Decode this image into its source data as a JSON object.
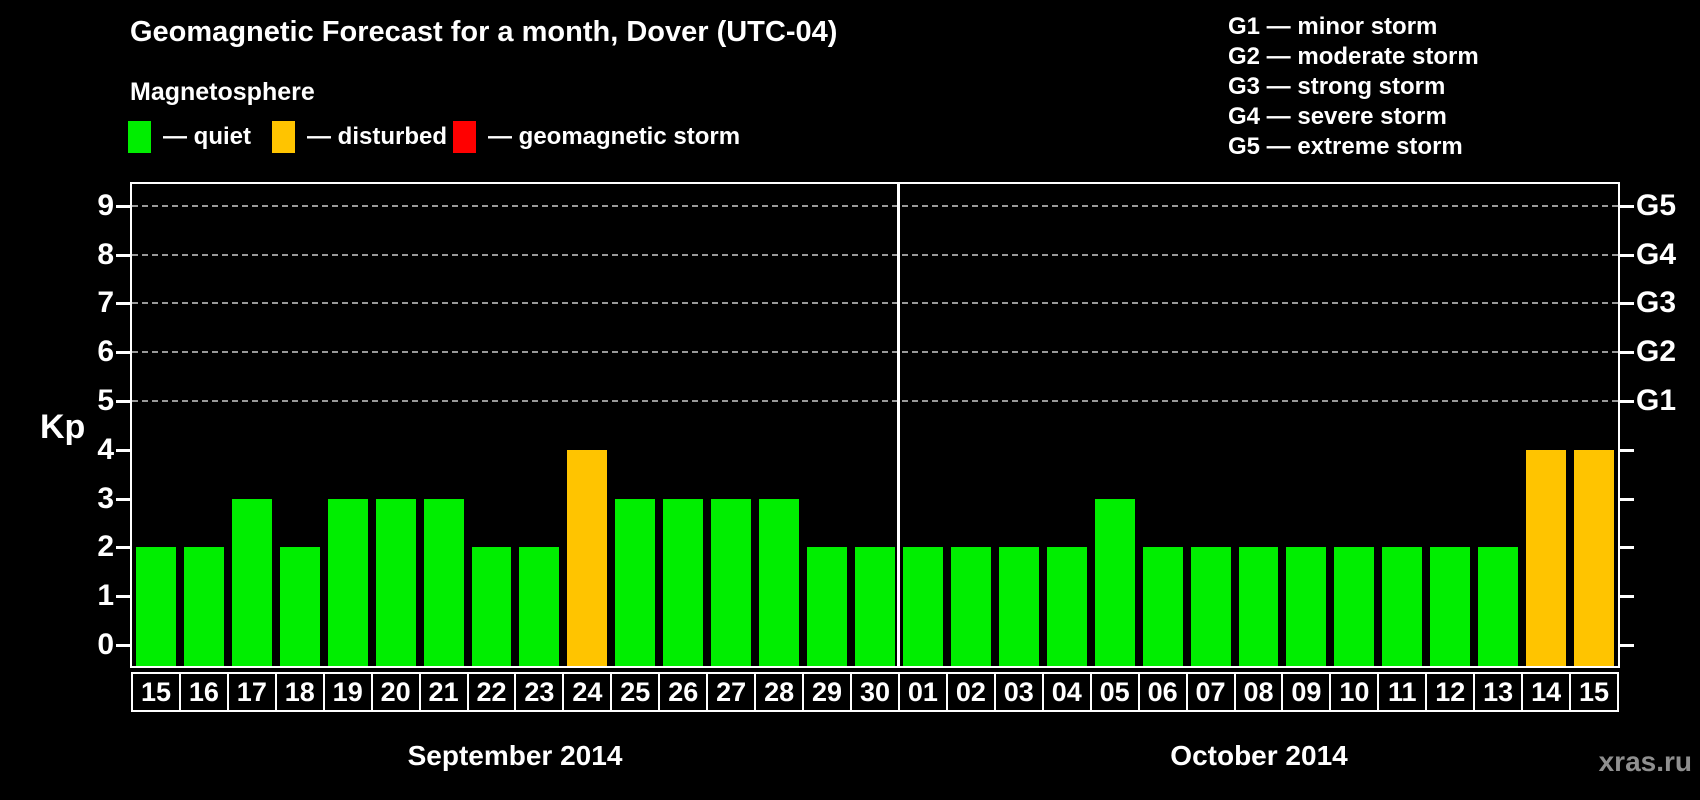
{
  "title": "Geomagnetic Forecast for a month, Dover (UTC-04)",
  "subtitle": "Magnetosphere",
  "condition_legend": [
    {
      "key": "quiet",
      "label": "— quiet",
      "color": "#00ee00"
    },
    {
      "key": "disturbed",
      "label": "— disturbed",
      "color": "#ffc400"
    },
    {
      "key": "storm",
      "label": "— geomagnetic storm",
      "color": "#ff0000"
    }
  ],
  "storm_scale_legend": [
    "G1 — minor storm",
    "G2 — moderate storm",
    "G3 — strong storm",
    "G4 — severe storm",
    "G5 — extreme storm"
  ],
  "watermark": "xras.ru",
  "chart_data": {
    "type": "bar",
    "ylabel": "Kp",
    "ylim": [
      0,
      9
    ],
    "yticks": [
      0,
      1,
      2,
      3,
      4,
      5,
      6,
      7,
      8,
      9
    ],
    "gridlines_at": [
      5,
      6,
      7,
      8,
      9
    ],
    "right_axis_labels": [
      {
        "kp": 5,
        "label": "G1"
      },
      {
        "kp": 6,
        "label": "G2"
      },
      {
        "kp": 7,
        "label": "G3"
      },
      {
        "kp": 8,
        "label": "G4"
      },
      {
        "kp": 9,
        "label": "G5"
      }
    ],
    "colors": {
      "quiet": "#00ee00",
      "disturbed": "#ffc400",
      "storm": "#ff0000"
    },
    "groups": [
      {
        "label": "September 2014",
        "days": [
          {
            "date": "15",
            "kp": 2,
            "status": "quiet"
          },
          {
            "date": "16",
            "kp": 2,
            "status": "quiet"
          },
          {
            "date": "17",
            "kp": 3,
            "status": "quiet"
          },
          {
            "date": "18",
            "kp": 2,
            "status": "quiet"
          },
          {
            "date": "19",
            "kp": 3,
            "status": "quiet"
          },
          {
            "date": "20",
            "kp": 3,
            "status": "quiet"
          },
          {
            "date": "21",
            "kp": 3,
            "status": "quiet"
          },
          {
            "date": "22",
            "kp": 2,
            "status": "quiet"
          },
          {
            "date": "23",
            "kp": 2,
            "status": "quiet"
          },
          {
            "date": "24",
            "kp": 4,
            "status": "disturbed"
          },
          {
            "date": "25",
            "kp": 3,
            "status": "quiet"
          },
          {
            "date": "26",
            "kp": 3,
            "status": "quiet"
          },
          {
            "date": "27",
            "kp": 3,
            "status": "quiet"
          },
          {
            "date": "28",
            "kp": 3,
            "status": "quiet"
          },
          {
            "date": "29",
            "kp": 2,
            "status": "quiet"
          },
          {
            "date": "30",
            "kp": 2,
            "status": "quiet"
          }
        ]
      },
      {
        "label": "October 2014",
        "days": [
          {
            "date": "01",
            "kp": 2,
            "status": "quiet"
          },
          {
            "date": "02",
            "kp": 2,
            "status": "quiet"
          },
          {
            "date": "03",
            "kp": 2,
            "status": "quiet"
          },
          {
            "date": "04",
            "kp": 2,
            "status": "quiet"
          },
          {
            "date": "05",
            "kp": 3,
            "status": "quiet"
          },
          {
            "date": "06",
            "kp": 2,
            "status": "quiet"
          },
          {
            "date": "07",
            "kp": 2,
            "status": "quiet"
          },
          {
            "date": "08",
            "kp": 2,
            "status": "quiet"
          },
          {
            "date": "09",
            "kp": 2,
            "status": "quiet"
          },
          {
            "date": "10",
            "kp": 2,
            "status": "quiet"
          },
          {
            "date": "11",
            "kp": 2,
            "status": "quiet"
          },
          {
            "date": "12",
            "kp": 2,
            "status": "quiet"
          },
          {
            "date": "13",
            "kp": 2,
            "status": "quiet"
          },
          {
            "date": "14",
            "kp": 4,
            "status": "disturbed"
          },
          {
            "date": "15",
            "kp": 4,
            "status": "disturbed"
          }
        ]
      }
    ]
  }
}
